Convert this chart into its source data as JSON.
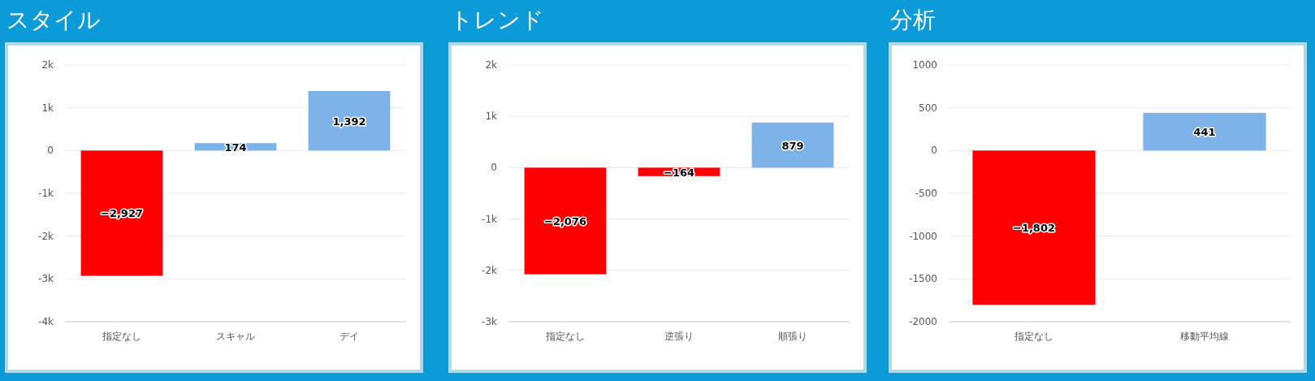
{
  "chart_data": [
    {
      "type": "bar",
      "title": "スタイル",
      "categories": [
        "指定なし",
        "スキャル",
        "デイ"
      ],
      "values": [
        -2927,
        174,
        1392
      ],
      "colors": [
        "#ff0000",
        "#7eb3ea",
        "#7eb3ea"
      ],
      "value_labels": [
        "−2,927",
        "174",
        "1,392"
      ],
      "ylim": [
        -4000,
        2000
      ],
      "yticks": [
        {
          "value": -4000,
          "label": "-4k"
        },
        {
          "value": -3000,
          "label": "-3k"
        },
        {
          "value": -2000,
          "label": "-2k"
        },
        {
          "value": -1000,
          "label": "-1k"
        },
        0,
        {
          "value": 1000,
          "label": "1k"
        },
        {
          "value": 2000,
          "label": "2k"
        }
      ],
      "grid": "y"
    },
    {
      "type": "bar",
      "title": "トレンド",
      "categories": [
        "指定なし",
        "逆張り",
        "順張り"
      ],
      "values": [
        -2076,
        -164,
        879
      ],
      "colors": [
        "#ff0000",
        "#ff0000",
        "#7eb3ea"
      ],
      "value_labels": [
        "−2,076",
        "−164",
        "879"
      ],
      "ylim": [
        -3000,
        2000
      ],
      "yticks": [
        {
          "value": -3000,
          "label": "-3k"
        },
        {
          "value": -2000,
          "label": "-2k"
        },
        {
          "value": -1000,
          "label": "-1k"
        },
        0,
        {
          "value": 1000,
          "label": "1k"
        },
        {
          "value": 2000,
          "label": "2k"
        }
      ],
      "grid": "y"
    },
    {
      "type": "bar",
      "title": "分析",
      "categories": [
        "指定なし",
        "移動平均線"
      ],
      "values": [
        -1802,
        441
      ],
      "colors": [
        "#ff0000",
        "#7eb3ea"
      ],
      "value_labels": [
        "−1,802",
        "441"
      ],
      "ylim": [
        -2000,
        1000
      ],
      "yticks": [
        -2000,
        -1500,
        -1000,
        -500,
        0,
        500,
        1000
      ],
      "grid": "y"
    }
  ]
}
